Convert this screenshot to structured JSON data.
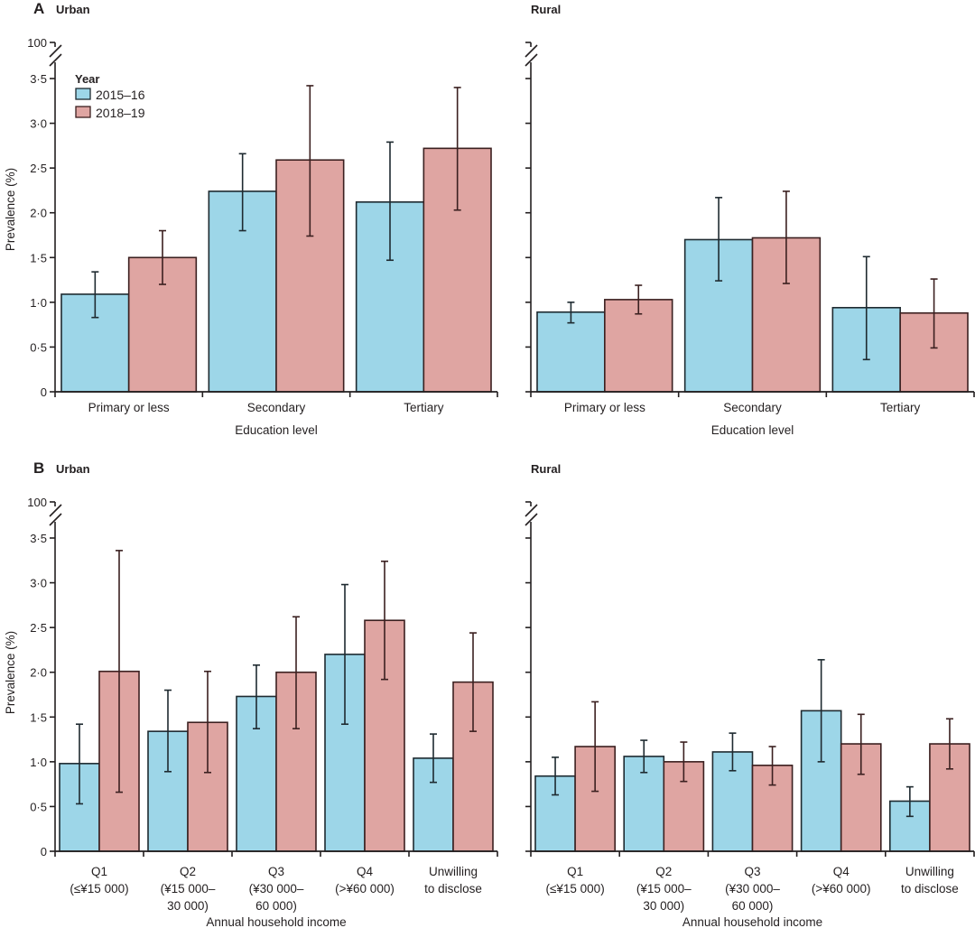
{
  "figure": {
    "panels": [
      {
        "letter": "A",
        "title": "Urban"
      },
      {
        "letter": "",
        "title": "Rural"
      },
      {
        "letter": "B",
        "title": "Urban"
      },
      {
        "letter": "",
        "title": "Rural"
      }
    ],
    "legend": {
      "title": "Year",
      "items": [
        {
          "label": "2015–16",
          "color": "#9dd6e8"
        },
        {
          "label": "2018–19",
          "color": "#dfa5a2"
        }
      ]
    },
    "colors": {
      "series_2015": "#9dd6e8",
      "series_2018": "#dfa5a2",
      "axis": "#231f20"
    }
  },
  "chart_data": [
    {
      "type": "bar",
      "panel": "A",
      "title": "Urban",
      "xlabel": "Education level",
      "ylabel": "Prevalence (%)",
      "ylim": [
        0,
        3.5
      ],
      "axis_break_label": "100",
      "yticks": [
        "0",
        "0·5",
        "1·0",
        "1·5",
        "2·0",
        "2·5",
        "3·0",
        "3·5"
      ],
      "show_ytick_labels": true,
      "categories": [
        "Primary or less",
        "Secondary",
        "Tertiary"
      ],
      "series": [
        {
          "name": "2015–16",
          "values": [
            1.09,
            2.24,
            2.12
          ],
          "ci_low": [
            0.83,
            1.8,
            1.47
          ],
          "ci_high": [
            1.34,
            2.66,
            2.79
          ]
        },
        {
          "name": "2018–19",
          "values": [
            1.5,
            2.59,
            2.72
          ],
          "ci_low": [
            1.2,
            1.74,
            2.03
          ],
          "ci_high": [
            1.8,
            3.42,
            3.4
          ]
        }
      ],
      "legend": "top-left",
      "grid": false
    },
    {
      "type": "bar",
      "panel": "A",
      "title": "Rural",
      "xlabel": "Education level",
      "ylabel": "",
      "ylim": [
        0,
        3.5
      ],
      "axis_break_label": "",
      "yticks": [
        "0",
        "0·5",
        "1·0",
        "1·5",
        "2·0",
        "2·5",
        "3·0",
        "3·5"
      ],
      "show_ytick_labels": false,
      "categories": [
        "Primary or less",
        "Secondary",
        "Tertiary"
      ],
      "series": [
        {
          "name": "2015–16",
          "values": [
            0.89,
            1.7,
            0.94
          ],
          "ci_low": [
            0.77,
            1.24,
            0.36
          ],
          "ci_high": [
            1.0,
            2.17,
            1.51
          ]
        },
        {
          "name": "2018–19",
          "values": [
            1.03,
            1.72,
            0.88
          ],
          "ci_low": [
            0.87,
            1.21,
            0.49
          ],
          "ci_high": [
            1.19,
            2.24,
            1.26
          ]
        }
      ],
      "grid": false
    },
    {
      "type": "bar",
      "panel": "B",
      "title": "Urban",
      "xlabel": "Annual household income",
      "ylabel": "Prevalence (%)",
      "ylim": [
        0,
        3.5
      ],
      "axis_break_label": "100",
      "yticks": [
        "0",
        "0·5",
        "1·0",
        "1·5",
        "2·0",
        "2·5",
        "3·0",
        "3·5"
      ],
      "show_ytick_labels": true,
      "categories": [
        [
          "Q1",
          "(≤¥15 000)"
        ],
        [
          "Q2",
          "(¥15 000–",
          "30 000)"
        ],
        [
          "Q3",
          "(¥30 000–",
          "60 000)"
        ],
        [
          "Q4",
          "(>¥60 000)"
        ],
        [
          "Unwilling",
          "to disclose"
        ]
      ],
      "series": [
        {
          "name": "2015–16",
          "values": [
            0.98,
            1.34,
            1.73,
            2.2,
            1.04
          ],
          "ci_low": [
            0.53,
            0.89,
            1.37,
            1.42,
            0.77
          ],
          "ci_high": [
            1.42,
            1.8,
            2.08,
            2.98,
            1.31
          ]
        },
        {
          "name": "2018–19",
          "values": [
            2.01,
            1.44,
            2.0,
            2.58,
            1.89
          ],
          "ci_low": [
            0.66,
            0.88,
            1.37,
            1.92,
            1.34
          ],
          "ci_high": [
            3.36,
            2.01,
            2.62,
            3.24,
            2.44
          ]
        }
      ],
      "grid": false
    },
    {
      "type": "bar",
      "panel": "B",
      "title": "Rural",
      "xlabel": "Annual household income",
      "ylabel": "",
      "ylim": [
        0,
        3.5
      ],
      "axis_break_label": "",
      "yticks": [
        "0",
        "0·5",
        "1·0",
        "1·5",
        "2·0",
        "2·5",
        "3·0",
        "3·5"
      ],
      "show_ytick_labels": false,
      "categories": [
        [
          "Q1",
          "(≤¥15 000)"
        ],
        [
          "Q2",
          "(¥15 000–",
          "30 000)"
        ],
        [
          "Q3",
          "(¥30 000–",
          "60 000)"
        ],
        [
          "Q4",
          "(>¥60 000)"
        ],
        [
          "Unwilling",
          "to disclose"
        ]
      ],
      "series": [
        {
          "name": "2015–16",
          "values": [
            0.84,
            1.06,
            1.11,
            1.57,
            0.56
          ],
          "ci_low": [
            0.63,
            0.88,
            0.9,
            1.0,
            0.39
          ],
          "ci_high": [
            1.05,
            1.24,
            1.32,
            2.14,
            0.72
          ]
        },
        {
          "name": "2018–19",
          "values": [
            1.17,
            1.0,
            0.96,
            1.2,
            1.2
          ],
          "ci_low": [
            0.67,
            0.78,
            0.74,
            0.86,
            0.92
          ],
          "ci_high": [
            1.67,
            1.22,
            1.17,
            1.53,
            1.48
          ]
        }
      ],
      "grid": false
    }
  ]
}
